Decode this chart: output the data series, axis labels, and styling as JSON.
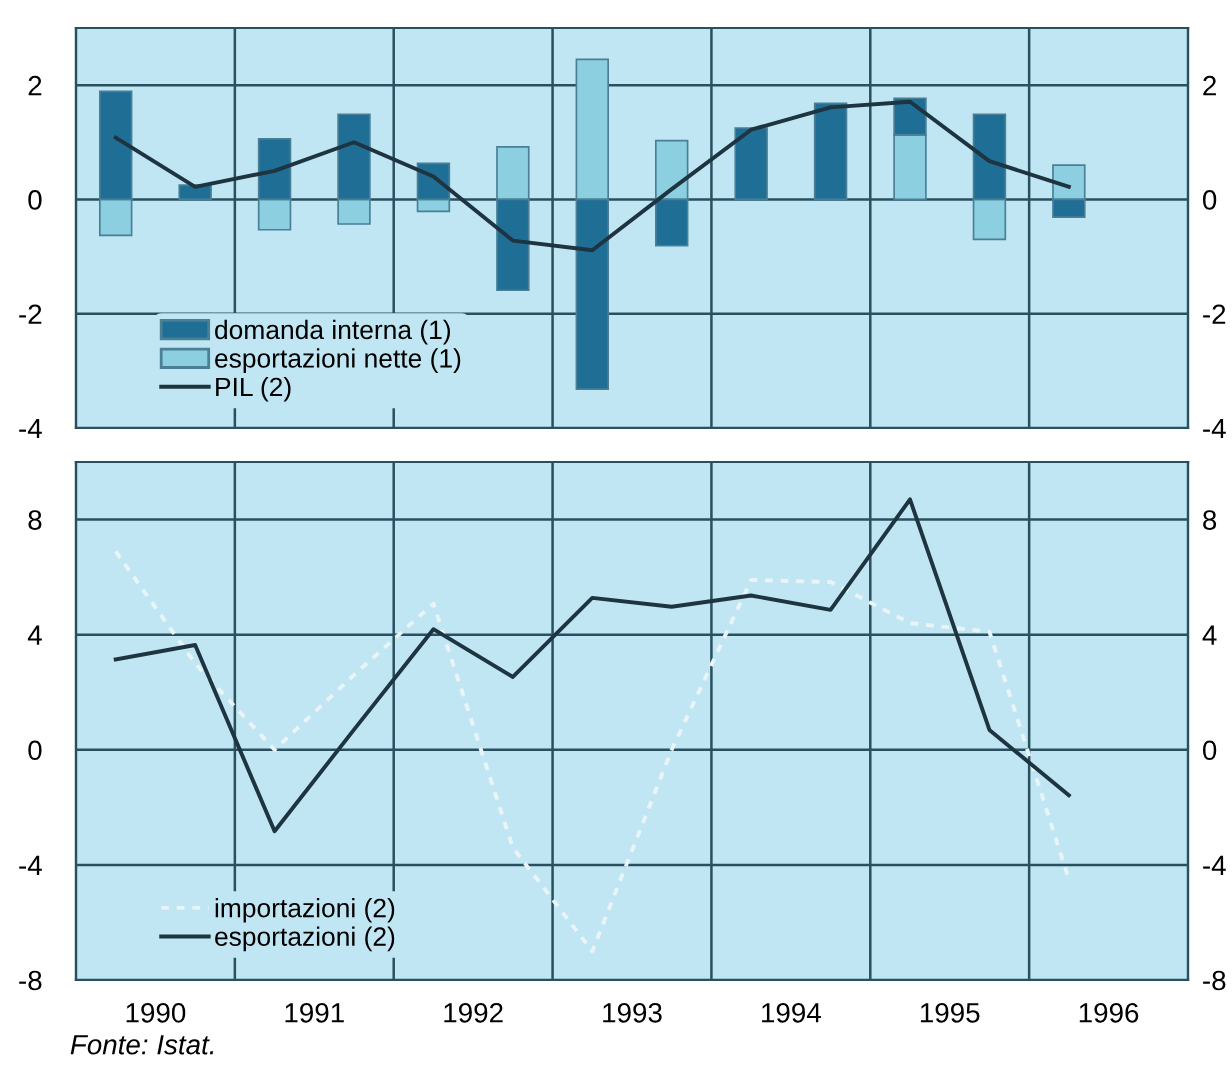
{
  "chart_data": [
    {
      "type": "bar",
      "stacked": true,
      "x": [
        1990.25,
        1990.75,
        1991.25,
        1991.75,
        1992.25,
        1992.75,
        1993.25,
        1993.75,
        1994.25,
        1994.75,
        1995.25,
        1995.75,
        1996.25
      ],
      "series": [
        {
          "name": "esportazioni nette (1)",
          "color": "#8ccfe0",
          "values": [
            -0.63,
            0,
            -0.53,
            -0.43,
            -0.21,
            0.92,
            2.45,
            1.03,
            0,
            0,
            1.13,
            -0.7,
            0.6
          ]
        },
        {
          "name": "domanda interna (1)",
          "color": "#1f6e96",
          "values": [
            1.89,
            0.25,
            1.06,
            1.49,
            0.63,
            -1.59,
            -3.32,
            -0.81,
            1.25,
            1.68,
            0.64,
            1.49,
            -0.31
          ]
        },
        {
          "name": "PIL (2)",
          "type": "line",
          "color": "#1e3440",
          "line_style": "solid",
          "values": [
            1.08,
            0.22,
            0.5,
            1.0,
            0.4,
            -0.72,
            -0.89,
            0.18,
            1.22,
            1.61,
            1.71,
            0.67,
            0.22
          ]
        }
      ],
      "xlim": [
        1990,
        1997
      ],
      "xticks": [
        {
          "value": 1991,
          "label": null
        },
        {
          "value": 1992,
          "label": null
        },
        {
          "value": 1993,
          "label": null
        },
        {
          "value": 1994,
          "label": null
        },
        {
          "value": 1995,
          "label": null
        },
        {
          "value": 1996,
          "label": null
        }
      ],
      "ylim": [
        -4,
        3
      ],
      "yticks": [
        -4,
        -2,
        0,
        2
      ],
      "y2lim": [
        -4,
        3
      ],
      "y2ticks": [
        -4,
        -2,
        0,
        2
      ],
      "tick_labels": "y",
      "grid": true,
      "legend": "bottom left",
      "marker": "none"
    },
    {
      "type": "line",
      "x": [
        1990.25,
        1990.75,
        1991.25,
        1991.75,
        1992.25,
        1992.75,
        1993.25,
        1993.75,
        1994.25,
        1994.75,
        1995.25,
        1995.75,
        1996.25
      ],
      "series": [
        {
          "name": "importazioni (2)",
          "color": "#e8f4f8",
          "line_style": "dotted",
          "values": [
            6.89,
            3.0,
            0.0,
            2.6,
            5.08,
            -3.4,
            -7.0,
            0.0,
            5.9,
            5.83,
            4.4,
            4.1,
            -4.5
          ]
        },
        {
          "name": "esportazioni (2)",
          "color": "#1e3440",
          "line_style": "solid",
          "values": [
            3.14,
            3.64,
            -2.83,
            0.7,
            4.19,
            2.53,
            5.28,
            4.97,
            5.36,
            4.86,
            8.7,
            0.69,
            -1.58
          ]
        }
      ],
      "xlim": [
        1990,
        1997
      ],
      "xticks": [
        {
          "value": 1990.5,
          "label": "1990"
        },
        {
          "value": 1991,
          "label": null
        },
        {
          "value": 1991.5,
          "label": "1991"
        },
        {
          "value": 1992,
          "label": null
        },
        {
          "value": 1992.5,
          "label": "1992"
        },
        {
          "value": 1993,
          "label": null
        },
        {
          "value": 1993.5,
          "label": "1993"
        },
        {
          "value": 1994,
          "label": null
        },
        {
          "value": 1994.5,
          "label": "1994"
        },
        {
          "value": 1995,
          "label": null
        },
        {
          "value": 1995.5,
          "label": "1995"
        },
        {
          "value": 1996,
          "label": null
        },
        {
          "value": 1996.5,
          "label": "1996"
        }
      ],
      "ylim": [
        -8,
        10
      ],
      "yticks": [
        -8,
        -4,
        0,
        4,
        8
      ],
      "y2lim": [
        -8,
        10
      ],
      "y2ticks": [
        -8,
        -4,
        0,
        4,
        8
      ],
      "grid": true,
      "legend": "bottom left",
      "marker": "none",
      "annotations": [
        "Fonte: Istat."
      ]
    }
  ]
}
